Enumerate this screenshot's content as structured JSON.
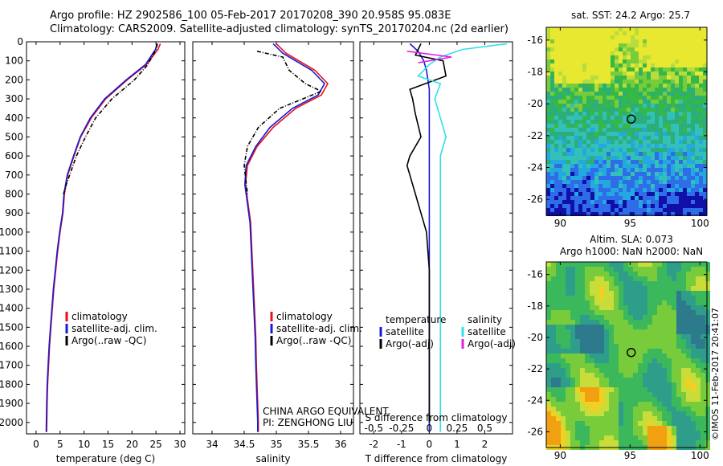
{
  "header": {
    "line1": "Argo profile: HZ 2902586_100 05-Feb-2017 20170208_390 20.958S 95.083E",
    "line2": "Climatology: CARS2009. Satellite-adjusted climatology: synTS_20170204.nc (2d earlier)"
  },
  "colors": {
    "climatology": "#e8101a",
    "satellite": "#1a1ad0",
    "argo": "#000000",
    "sat_salinity": "#30e0ee",
    "argo_adj_salinity": "#e020e0"
  },
  "chart_data": [
    {
      "type": "line",
      "panel": "temperature",
      "xlabel": "temperature (deg C)",
      "xlim": [
        -2,
        31
      ],
      "xticks": [
        0,
        5,
        10,
        15,
        20,
        25,
        30
      ],
      "ylim": [
        0,
        2060
      ],
      "yticks": [
        0,
        100,
        200,
        300,
        400,
        500,
        600,
        700,
        800,
        900,
        1000,
        1100,
        1200,
        1300,
        1400,
        1500,
        1600,
        1700,
        1800,
        1900,
        2000
      ],
      "legend": [
        "climatology",
        "satellite-adj. clim.",
        "Argo(..raw -QC)"
      ],
      "series": [
        {
          "name": "climatology",
          "x": [
            25.9,
            25.4,
            23.0,
            19.0,
            14.5,
            11.5,
            9.3,
            7.9,
            6.6,
            5.9,
            5.6,
            5.0,
            4.5,
            4.1,
            3.7,
            3.4,
            3.1,
            2.8,
            2.6,
            2.4,
            2.3,
            2.2
          ],
          "y": [
            10,
            40,
            120,
            200,
            300,
            400,
            500,
            600,
            700,
            800,
            900,
            1000,
            1100,
            1200,
            1300,
            1400,
            1500,
            1600,
            1700,
            1800,
            1900,
            2050
          ]
        },
        {
          "name": "satellite-adj. clim.",
          "x": [
            25.2,
            24.9,
            22.8,
            18.8,
            14.3,
            11.3,
            9.2,
            7.8,
            6.5,
            5.8,
            5.5,
            4.9,
            4.4,
            4.0,
            3.6,
            3.3,
            3.0,
            2.7,
            2.5,
            2.3,
            2.2,
            2.1
          ],
          "y": [
            10,
            40,
            120,
            200,
            300,
            400,
            500,
            600,
            700,
            800,
            900,
            1000,
            1100,
            1200,
            1300,
            1400,
            1500,
            1600,
            1700,
            1800,
            1900,
            2050
          ]
        },
        {
          "name": "Argo(..raw -QC)",
          "x": [
            25.3,
            25.0,
            23.3,
            20.5,
            15.8,
            12.4,
            10.3,
            8.4,
            6.3,
            5.7
          ],
          "y": [
            10,
            40,
            120,
            200,
            300,
            400,
            500,
            600,
            750,
            800
          ]
        }
      ]
    },
    {
      "type": "line",
      "panel": "salinity",
      "xlabel": "salinity",
      "xlim": [
        33.7,
        36.2
      ],
      "xticks": [
        34,
        34.5,
        35,
        35.5,
        36
      ],
      "ylim": [
        0,
        2060
      ],
      "legend": [
        "climatology",
        "satellite-adj. clim.",
        "Argo(..raw -QC)"
      ],
      "annotation": [
        "CHINA ARGO EQUIVALENT",
        "PI: ZENGHONG LIU"
      ],
      "series": [
        {
          "name": "climatology",
          "x": [
            35.0,
            35.15,
            35.6,
            35.8,
            35.7,
            35.3,
            34.95,
            34.7,
            34.55,
            34.52,
            34.56,
            34.6,
            34.62,
            34.64,
            34.66,
            34.68,
            34.69,
            34.7,
            34.71,
            34.72,
            34.72
          ],
          "y": [
            10,
            60,
            150,
            220,
            280,
            350,
            450,
            550,
            650,
            750,
            850,
            950,
            1100,
            1250,
            1400,
            1550,
            1700,
            1800,
            1900,
            2000,
            2050
          ]
        },
        {
          "name": "satellite-adj. clim.",
          "x": [
            34.95,
            35.1,
            35.55,
            35.75,
            35.65,
            35.25,
            34.9,
            34.68,
            34.53,
            34.51,
            34.55,
            34.59,
            34.61,
            34.63,
            34.65,
            34.67,
            34.68,
            34.69,
            34.7,
            34.71,
            34.71
          ],
          "y": [
            10,
            60,
            150,
            220,
            280,
            350,
            450,
            550,
            650,
            750,
            850,
            950,
            1100,
            1250,
            1400,
            1550,
            1700,
            1800,
            1900,
            2000,
            2050
          ]
        },
        {
          "name": "Argo(..raw -QC)",
          "x": [
            34.7,
            35.1,
            35.2,
            35.45,
            35.7,
            35.05,
            34.72,
            34.55,
            34.5,
            34.55
          ],
          "y": [
            50,
            80,
            150,
            220,
            260,
            350,
            450,
            550,
            650,
            800
          ]
        }
      ]
    },
    {
      "type": "line",
      "panel": "difference",
      "xlabel": "T difference from climatology",
      "xlabel_top": "S difference from climatology",
      "xlim": [
        -2.5,
        3
      ],
      "xticks": [
        -2,
        -1,
        0,
        1,
        2
      ],
      "xticks_S": [
        "-0.5",
        "-0.25",
        "0",
        "0.25",
        "0.5"
      ],
      "ylim": [
        0,
        2060
      ],
      "legend_temperature": [
        "temperature",
        "satellite",
        "Argo(-adj)"
      ],
      "legend_salinity": [
        "salinity",
        "satellite",
        "Argo(-adj)"
      ],
      "series": [
        {
          "name": "temperature satellite",
          "x": [
            -0.7,
            -0.4,
            -0.2,
            -0.1,
            0,
            0,
            0,
            0,
            0,
            0
          ],
          "y": [
            10,
            50,
            100,
            150,
            250,
            400,
            700,
            1000,
            1500,
            2050
          ]
        },
        {
          "name": "temperature Argo(-adj)",
          "x": [
            -0.3,
            -0.5,
            0.5,
            0.6,
            -0.7,
            -0.6,
            -0.5,
            -0.3,
            -0.7,
            -0.8,
            -0.7,
            -0.5,
            -0.3,
            -0.1,
            0,
            0,
            0
          ],
          "y": [
            10,
            70,
            100,
            180,
            250,
            300,
            380,
            500,
            600,
            650,
            700,
            800,
            900,
            1000,
            1200,
            1600,
            2000
          ]
        },
        {
          "name": "salinity satellite",
          "x": [
            0.7,
            0.3,
            0.1,
            0.0,
            -0.1,
            0.1,
            0.05,
            0.1,
            0.15,
            0.1,
            0.1,
            0.1,
            0.1
          ],
          "y": [
            10,
            40,
            80,
            120,
            180,
            220,
            300,
            400,
            500,
            600,
            700,
            800,
            2050
          ]
        },
        {
          "name": "salinity Argo(-adj)",
          "x": [
            -0.2,
            0.2,
            -0.1
          ],
          "y": [
            50,
            80,
            110
          ]
        }
      ]
    },
    {
      "type": "heatmap",
      "panel": "sst_map",
      "title": "sat. SST: 24.2 Argo: 25.7",
      "xticks": [
        90,
        95,
        100
      ],
      "yticks": [
        -16,
        -18,
        -20,
        -22,
        -24,
        -26
      ],
      "xlim": [
        89,
        100.5
      ],
      "ylim": [
        -27,
        -15.2
      ],
      "marker": [
        95.08,
        -20.96
      ]
    },
    {
      "type": "heatmap",
      "panel": "sla_map",
      "title_lines": [
        "Altim. SLA: 0.073",
        "Argo h1000: NaN h2000: NaN"
      ],
      "xticks": [
        90,
        95,
        100
      ],
      "yticks": [
        -16,
        -18,
        -20,
        -22,
        -24,
        -26
      ],
      "xlim": [
        89,
        100.5
      ],
      "ylim": [
        -27,
        -15.2
      ],
      "marker": [
        95.08,
        -20.96
      ]
    }
  ],
  "credit": "©IMOS 11-Feb-2017 20:41:07"
}
